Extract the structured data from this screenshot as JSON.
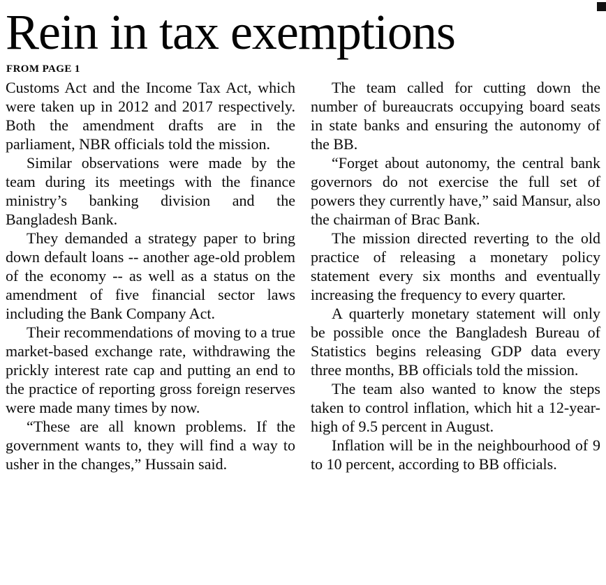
{
  "page": {
    "background": "#ffffff",
    "text_color": "#0b0b0b"
  },
  "article": {
    "title": "Rein in tax exemptions",
    "kicker": "FROM PAGE 1",
    "columns": [
      {
        "paragraphs": [
          {
            "indent": false,
            "text": "Customs Act and the Income Tax Act, which were taken up in 2012 and 2017 respectively. Both the amendment drafts are in the parliament, NBR officials told the mission."
          },
          {
            "indent": true,
            "text": "Similar observations were made by the team during its meetings with the finance ministry’s banking division and the Bangladesh Bank."
          },
          {
            "indent": true,
            "text": "They demanded a strategy paper to bring down default loans -- another age-old problem of the economy -- as well as a status on the amendment of five financial sector laws including the Bank Company Act."
          },
          {
            "indent": true,
            "text": "Their recommendations of moving to a true market-based exchange rate, withdrawing the prickly interest rate cap and putting an end to the practice of reporting gross foreign reserves were made many times by now."
          },
          {
            "indent": true,
            "text": "“These are all known problems. If the government wants to, they will find a way to usher in the changes,” Hussain said."
          }
        ]
      },
      {
        "paragraphs": [
          {
            "indent": true,
            "text": "The team called for cutting down the number of bureaucrats occupying board seats in state banks and ensuring the autonomy of the BB."
          },
          {
            "indent": true,
            "text": "“Forget about autonomy, the central bank governors do not exercise the full set of powers they currently have,” said Mansur, also the chairman of Brac Bank."
          },
          {
            "indent": true,
            "text": "The mission directed reverting to the old practice of releasing a monetary policy statement every six months and eventually increasing the frequency to every quarter."
          },
          {
            "indent": true,
            "text": "A quarterly monetary statement will only be possible once the Bangladesh Bureau of Statistics begins releasing GDP data every three months, BB officials told the mission."
          },
          {
            "indent": true,
            "text": "The team also wanted to know the steps taken to control inflation, which hit a 12-year-high of 9.5 percent in August."
          },
          {
            "indent": true,
            "text": "Inflation will be in the neighbourhood of 9 to 10 percent, according to BB officials."
          }
        ]
      }
    ]
  }
}
